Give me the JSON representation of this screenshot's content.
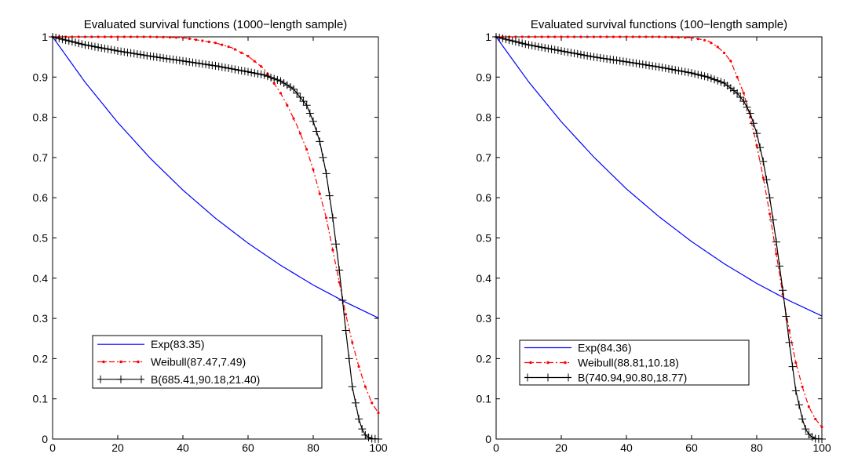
{
  "chart_data": [
    {
      "type": "line",
      "title": "Evaluated survival functions (1000−length sample)",
      "xlim": [
        0,
        100
      ],
      "ylim": [
        0,
        1
      ],
      "xticks": [
        "0",
        "20",
        "40",
        "60",
        "80",
        "100"
      ],
      "yticks": [
        "0",
        "0.1",
        "0.2",
        "0.3",
        "0.4",
        "0.5",
        "0.6",
        "0.7",
        "0.8",
        "0.9",
        "1"
      ],
      "grid": false,
      "legend_position": "lower-left",
      "series": [
        {
          "name": "Exp(83.35)",
          "color": "#0000ff",
          "style": "solid",
          "marker": "none",
          "x": [
            0,
            10,
            20,
            30,
            40,
            50,
            60,
            70,
            80,
            90,
            100
          ],
          "y": [
            1.0,
            0.887,
            0.787,
            0.698,
            0.619,
            0.549,
            0.487,
            0.432,
            0.383,
            0.34,
            0.301
          ]
        },
        {
          "name": "Weibull(87.47,7.49)",
          "color": "#ff0000",
          "style": "dashdot",
          "marker": "dot",
          "x": [
            0,
            10,
            20,
            30,
            40,
            50,
            55,
            60,
            65,
            70,
            72,
            75,
            78,
            80,
            82,
            84,
            86,
            88,
            90,
            92,
            94,
            96,
            98,
            100
          ],
          "y": [
            1.0,
            1.0,
            1.0,
            1.0,
            0.998,
            0.985,
            0.973,
            0.952,
            0.92,
            0.86,
            0.83,
            0.78,
            0.72,
            0.67,
            0.61,
            0.55,
            0.47,
            0.39,
            0.31,
            0.24,
            0.18,
            0.13,
            0.09,
            0.065
          ]
        },
        {
          "name": "B(685.41,90.18,21.40)",
          "color": "#000000",
          "style": "solid",
          "marker": "plus",
          "x": [
            0,
            10,
            20,
            30,
            40,
            50,
            60,
            65,
            70,
            74,
            76,
            78,
            80,
            82,
            84,
            86,
            88,
            90,
            92,
            94,
            95,
            96,
            97,
            98,
            100
          ],
          "y": [
            1.0,
            0.98,
            0.965,
            0.952,
            0.94,
            0.928,
            0.913,
            0.905,
            0.89,
            0.87,
            0.85,
            0.83,
            0.79,
            0.74,
            0.66,
            0.55,
            0.42,
            0.27,
            0.13,
            0.05,
            0.025,
            0.01,
            0.004,
            0.001,
            0.0
          ]
        }
      ]
    },
    {
      "type": "line",
      "title": "Evaluated survival functions (100−length sample)",
      "xlim": [
        0,
        100
      ],
      "ylim": [
        0,
        1
      ],
      "xticks": [
        "0",
        "20",
        "40",
        "60",
        "80",
        "100"
      ],
      "yticks": [
        "0",
        "0.1",
        "0.2",
        "0.3",
        "0.4",
        "0.5",
        "0.6",
        "0.7",
        "0.8",
        "0.9",
        "1"
      ],
      "grid": false,
      "legend_position": "lower-left",
      "series": [
        {
          "name": "Exp(84.36)",
          "color": "#0000ff",
          "style": "solid",
          "marker": "none",
          "x": [
            0,
            10,
            20,
            30,
            40,
            50,
            60,
            70,
            80,
            90,
            100
          ],
          "y": [
            1.0,
            0.888,
            0.789,
            0.701,
            0.622,
            0.553,
            0.491,
            0.436,
            0.387,
            0.344,
            0.306
          ]
        },
        {
          "name": "Weibull(88.81,10.18)",
          "color": "#ff0000",
          "style": "dashdot",
          "marker": "dot",
          "x": [
            0,
            10,
            20,
            30,
            40,
            50,
            60,
            65,
            68,
            70,
            72,
            74,
            76,
            78,
            80,
            82,
            84,
            86,
            88,
            90,
            92,
            94,
            96,
            98,
            100
          ],
          "y": [
            1.0,
            1.0,
            1.0,
            1.0,
            1.0,
            1.0,
            0.998,
            0.99,
            0.975,
            0.96,
            0.94,
            0.9,
            0.86,
            0.8,
            0.73,
            0.65,
            0.56,
            0.46,
            0.36,
            0.27,
            0.19,
            0.13,
            0.08,
            0.05,
            0.03
          ]
        },
        {
          "name": "B(740.94,90.80,18.77)",
          "color": "#000000",
          "style": "solid",
          "marker": "plus",
          "x": [
            0,
            10,
            20,
            30,
            40,
            50,
            60,
            65,
            70,
            74,
            76,
            78,
            80,
            82,
            84,
            86,
            88,
            90,
            92,
            94,
            95,
            96,
            97,
            98,
            100
          ],
          "y": [
            1.0,
            0.98,
            0.965,
            0.95,
            0.938,
            0.925,
            0.91,
            0.9,
            0.885,
            0.86,
            0.84,
            0.81,
            0.76,
            0.69,
            0.6,
            0.49,
            0.37,
            0.24,
            0.12,
            0.05,
            0.025,
            0.012,
            0.005,
            0.001,
            0.0
          ]
        }
      ]
    }
  ]
}
